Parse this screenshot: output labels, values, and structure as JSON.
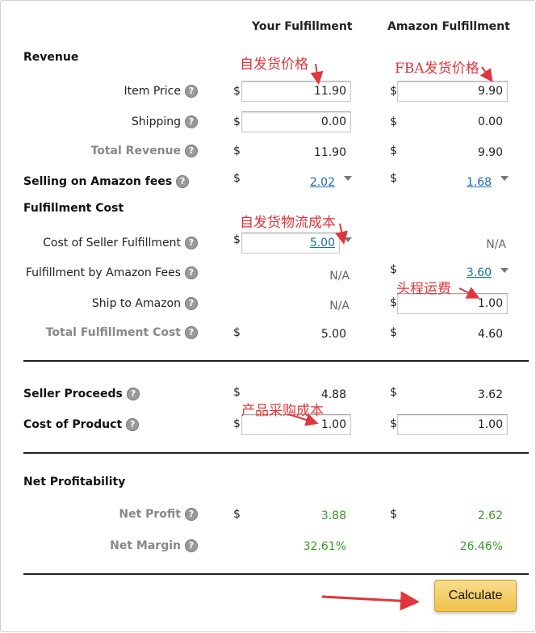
{
  "columns": {
    "yours": "Your Fulfillment",
    "amazon": "Amazon Fulfillment"
  },
  "currency": "$",
  "help_glyph": "?",
  "sections": {
    "revenue": "Revenue",
    "fulfillment_cost": "Fulfillment Cost",
    "net_profitability": "Net Profitability"
  },
  "rows": {
    "item_price": {
      "label": "Item Price",
      "yours": "11.90",
      "amazon": "9.90"
    },
    "shipping": {
      "label": "Shipping",
      "yours": "0.00",
      "amazon": "0.00"
    },
    "total_revenue": {
      "label": "Total Revenue",
      "yours": "11.90",
      "amazon": "9.90"
    },
    "selling_fees": {
      "label": "Selling on Amazon fees",
      "yours": "2.02",
      "amazon": "1.68"
    },
    "seller_fulfillment": {
      "label": "Cost of Seller Fulfillment",
      "yours": "5.00",
      "amazon": "N/A"
    },
    "fba_fees": {
      "label": "Fulfillment by Amazon Fees",
      "yours": "N/A",
      "amazon": "3.60"
    },
    "ship_to_amazon": {
      "label": "Ship to Amazon",
      "yours": "N/A",
      "amazon": "1.00"
    },
    "total_fulfillment": {
      "label": "Total Fulfillment Cost",
      "yours": "5.00",
      "amazon": "4.60"
    },
    "seller_proceeds": {
      "label": "Seller Proceeds",
      "yours": "4.88",
      "amazon": "3.62"
    },
    "cost_of_product": {
      "label": "Cost of Product",
      "yours": "1.00",
      "amazon": "1.00"
    },
    "net_profit": {
      "label": "Net Profit",
      "yours": "3.88",
      "amazon": "2.62"
    },
    "net_margin": {
      "label": "Net Margin",
      "yours": "32.61%",
      "amazon": "26.46%"
    }
  },
  "annotations": {
    "self_price": "自发货价格",
    "fba_price": "FBA发货价格",
    "self_logistics": "自发货物流成本",
    "first_leg": "头程运费",
    "product_cost": "产品采购成本"
  },
  "button": {
    "label": "Calculate"
  },
  "colors": {
    "annotation": "#e0353b",
    "profit": "#3a9a2a",
    "link": "#1a6db0",
    "button": "#f0c14b"
  }
}
